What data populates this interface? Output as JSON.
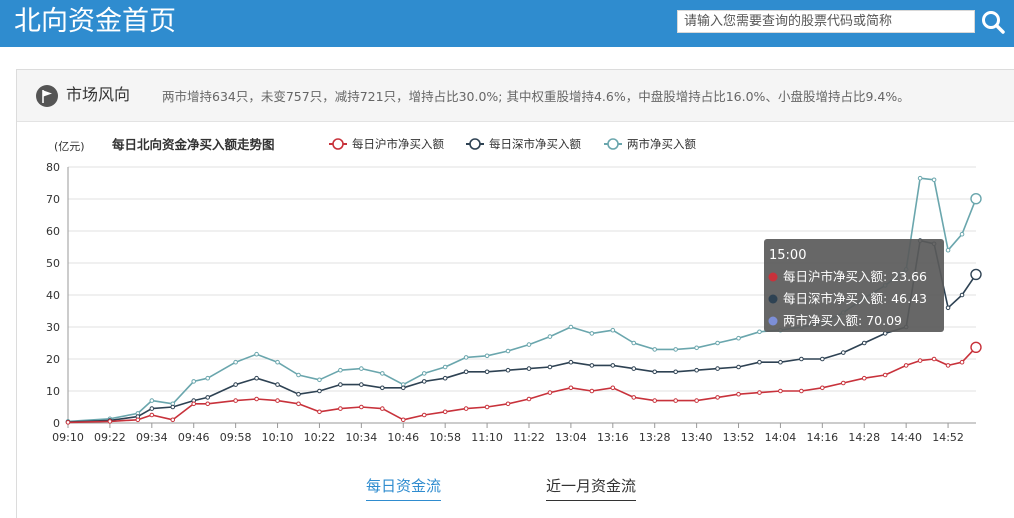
{
  "header": {
    "title": "北向资金首页",
    "search_placeholder": "请输入您需要查询的股票代码或简称"
  },
  "section": {
    "title": "市场风向",
    "summary": "两市增持634只，未变757只，减持721只，增持占比30.0%; 其中权重股增持4.6%，中盘股增持占比16.0%、小盘股增持占比9.4%。"
  },
  "colors": {
    "brand": "#2f8ccf",
    "sh": "#c8323b",
    "sz": "#2e4253",
    "total": "#6aa6ad"
  },
  "tabs": {
    "daily": "每日资金流",
    "monthly": "近一月资金流"
  },
  "chart_data": {
    "type": "line",
    "title": "每日北向资金净买入额走势图",
    "ylabel": "(亿元)",
    "ylim": [
      0,
      80
    ],
    "yticks": [
      0,
      10,
      20,
      30,
      40,
      50,
      60,
      70,
      80
    ],
    "xticks": [
      "09:10",
      "09:22",
      "09:34",
      "09:46",
      "09:58",
      "10:10",
      "10:22",
      "10:34",
      "10:46",
      "10:58",
      "11:10",
      "11:22",
      "13:04",
      "13:16",
      "13:28",
      "13:40",
      "13:52",
      "14:04",
      "14:16",
      "14:28",
      "14:40",
      "14:52"
    ],
    "grid": true,
    "legend_position": "top",
    "x": [
      "09:10",
      "09:22",
      "09:30",
      "09:34",
      "09:40",
      "09:46",
      "09:50",
      "09:58",
      "10:04",
      "10:10",
      "10:16",
      "10:22",
      "10:28",
      "10:34",
      "10:40",
      "10:46",
      "10:52",
      "10:58",
      "11:04",
      "11:10",
      "11:16",
      "11:22",
      "11:28",
      "13:04",
      "13:10",
      "13:16",
      "13:22",
      "13:28",
      "13:34",
      "13:40",
      "13:46",
      "13:52",
      "13:58",
      "14:04",
      "14:10",
      "14:16",
      "14:22",
      "14:28",
      "14:34",
      "14:40",
      "14:44",
      "14:48",
      "14:52",
      "14:56",
      "15:00"
    ],
    "series": [
      {
        "name": "每日沪市净买入额",
        "color": "#c8323b",
        "values": [
          0.2,
          0.5,
          1.0,
          2.5,
          1.0,
          6.0,
          6.0,
          7.0,
          7.5,
          7.0,
          6.0,
          3.5,
          4.5,
          5.0,
          4.5,
          1.0,
          2.5,
          3.5,
          4.5,
          5.0,
          6.0,
          7.5,
          9.5,
          11.0,
          10.0,
          11.0,
          8.0,
          7.0,
          7.0,
          7.0,
          8.0,
          9.0,
          9.5,
          10.0,
          10.0,
          11.0,
          12.5,
          14.0,
          15.0,
          18.0,
          19.5,
          20.0,
          18.0,
          19.0,
          23.66
        ]
      },
      {
        "name": "每日深市净买入额",
        "color": "#2e4253",
        "values": [
          0.3,
          0.8,
          2.0,
          4.5,
          5.0,
          7.0,
          8.0,
          12.0,
          14.0,
          12.0,
          9.0,
          10.0,
          12.0,
          12.0,
          11.0,
          11.0,
          13.0,
          14.0,
          16.0,
          16.0,
          16.5,
          17.0,
          17.5,
          19.0,
          18.0,
          18.0,
          17.0,
          16.0,
          16.0,
          16.5,
          17.0,
          17.5,
          19.0,
          19.0,
          20.0,
          20.0,
          22.0,
          25.0,
          28.0,
          30.0,
          57.0,
          56.0,
          36.0,
          40.0,
          46.43
        ]
      },
      {
        "name": "两市净买入额",
        "color": "#6aa6ad",
        "values": [
          0.5,
          1.3,
          3.0,
          7.0,
          6.0,
          13.0,
          14.0,
          19.0,
          21.5,
          19.0,
          15.0,
          13.5,
          16.5,
          17.0,
          15.5,
          12.0,
          15.5,
          17.5,
          20.5,
          21.0,
          22.5,
          24.5,
          27.0,
          30.0,
          28.0,
          29.0,
          25.0,
          23.0,
          23.0,
          23.5,
          25.0,
          26.5,
          28.5,
          29.0,
          30.0,
          31.0,
          34.5,
          39.0,
          43.0,
          48.0,
          76.5,
          76.0,
          54.0,
          59.0,
          70.09
        ]
      }
    ],
    "tooltip": {
      "time": "15:00",
      "rows": [
        {
          "label": "每日沪市净买入额: 23.66",
          "color": "#c8323b"
        },
        {
          "label": "每日深市净买入额: 46.43",
          "color": "#2e4253"
        },
        {
          "label": "两市净买入额: 70.09",
          "color": "#7d8fd8"
        }
      ]
    }
  }
}
